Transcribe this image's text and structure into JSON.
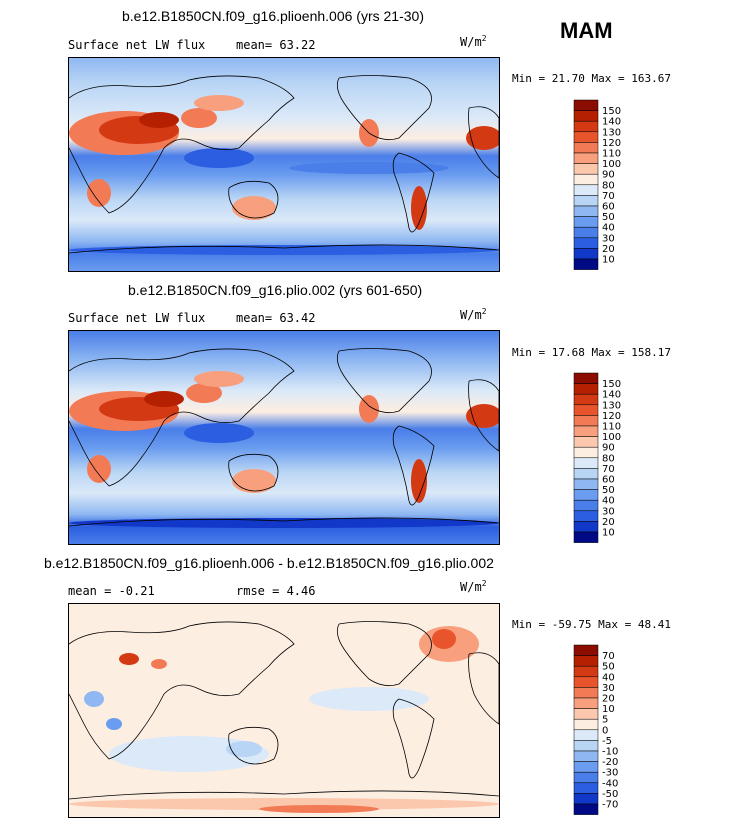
{
  "season": "MAM",
  "units": {
    "base": "W/m",
    "exp": "2"
  },
  "chart_data": [
    {
      "type": "heatmap",
      "title": "b.e12.B1850CN.f09_g16.plioenh.006 (yrs 21-30)",
      "subtitle_left": "Surface net LW flux",
      "subtitle_right": "mean=  63.22",
      "min_label": "Min =",
      "min_value": "21.70",
      "max_label": "Max =",
      "max_value": "163.67",
      "stats_text": "Min =  21.70 Max = 163.67",
      "colorbar_levels": [
        "150",
        "140",
        "130",
        "120",
        "110",
        "100",
        "90",
        "80",
        "70",
        "60",
        "50",
        "40",
        "30",
        "20",
        "10"
      ],
      "colorbar_colors": [
        "#8b0d00",
        "#b52000",
        "#d33a14",
        "#e8542c",
        "#f27a55",
        "#f8a07e",
        "#fcc8ad",
        "#fdeee2",
        "#dbe9f8",
        "#b9d5f5",
        "#8fb8f2",
        "#6a9cef",
        "#4a7ee9",
        "#2b5ee0",
        "#1138c8",
        "#000a84"
      ]
    },
    {
      "type": "heatmap",
      "title": "b.e12.B1850CN.f09_g16.plio.002 (yrs 601-650)",
      "subtitle_left": "Surface net LW flux",
      "subtitle_right": "mean=  63.42",
      "stats_text": "Min =  17.68 Max = 158.17",
      "colorbar_levels": [
        "150",
        "140",
        "130",
        "120",
        "110",
        "100",
        "90",
        "80",
        "70",
        "60",
        "50",
        "40",
        "30",
        "20",
        "10"
      ],
      "colorbar_colors": [
        "#8b0d00",
        "#b52000",
        "#d33a14",
        "#e8542c",
        "#f27a55",
        "#f8a07e",
        "#fcc8ad",
        "#fdeee2",
        "#dbe9f8",
        "#b9d5f5",
        "#8fb8f2",
        "#6a9cef",
        "#4a7ee9",
        "#2b5ee0",
        "#1138c8",
        "#000a84"
      ]
    },
    {
      "type": "heatmap",
      "title": "b.e12.B1850CN.f09_g16.plioenh.006 - b.e12.B1850CN.f09_g16.plio.002",
      "subtitle_left": "mean =  -0.21",
      "subtitle_right": "rmse =   4.46",
      "stats_text": "Min = -59.75 Max =  48.41",
      "colorbar_levels": [
        "70",
        "50",
        "40",
        "30",
        "20",
        "10",
        "5",
        "0",
        "-5",
        "-10",
        "-20",
        "-30",
        "-40",
        "-50",
        "-70"
      ],
      "colorbar_colors": [
        "#8b0d00",
        "#b52000",
        "#d33a14",
        "#e8542c",
        "#f27a55",
        "#f8a07e",
        "#fcc8ad",
        "#fdeee2",
        "#dbe9f8",
        "#b9d5f5",
        "#8fb8f2",
        "#6a9cef",
        "#4a7ee9",
        "#2b5ee0",
        "#1138c8",
        "#000a84"
      ]
    }
  ]
}
